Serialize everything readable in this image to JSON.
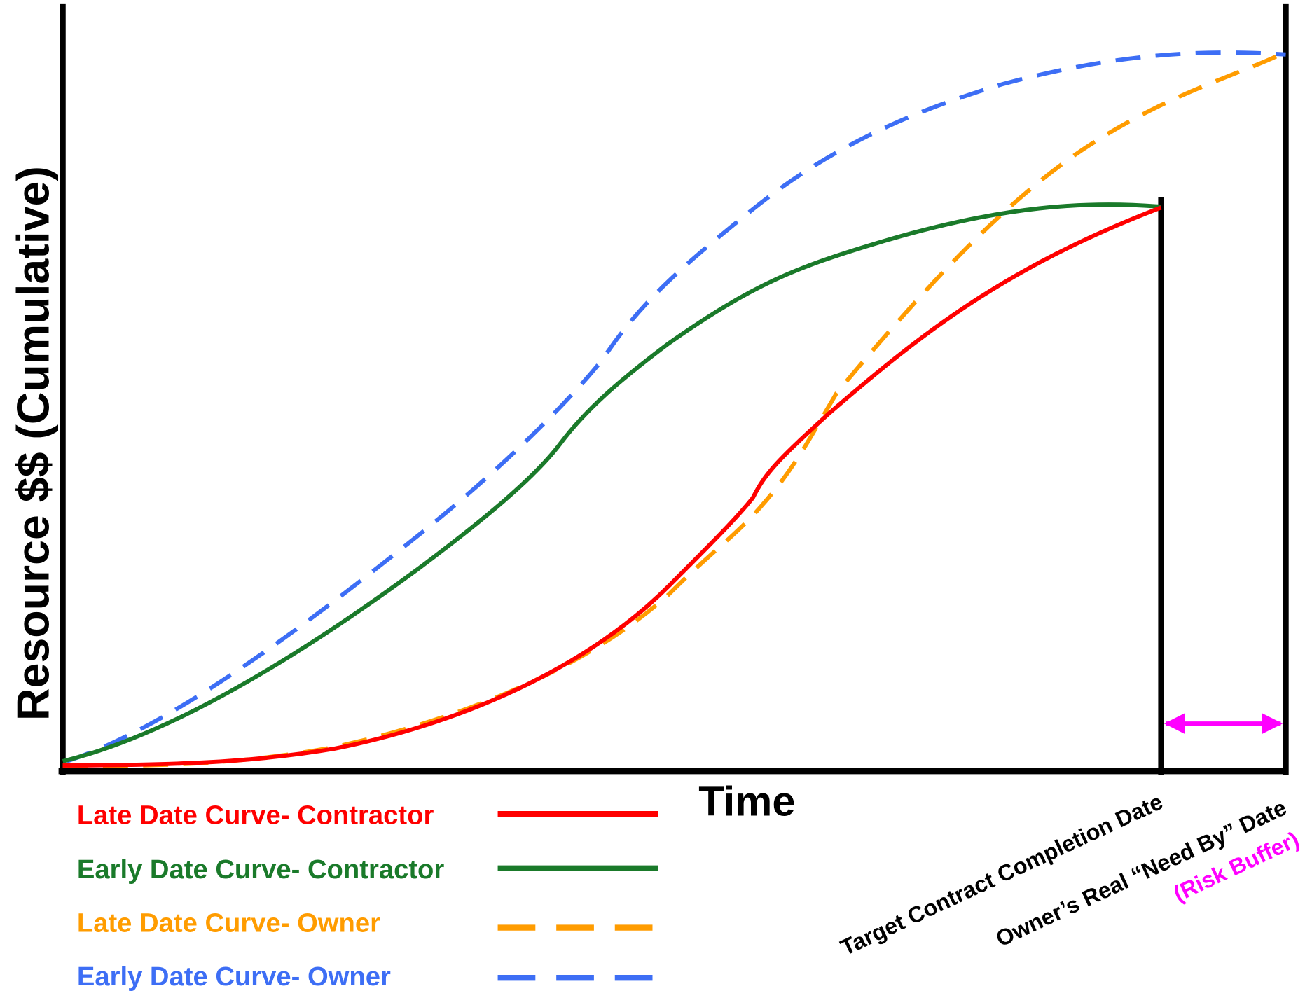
{
  "axes": {
    "y_label": "Resource $$ (Cumulative)",
    "x_label": "Time"
  },
  "legend": [
    {
      "label": "Late Date Curve- Contractor"
    },
    {
      "label": "Early Date Curve- Contractor"
    },
    {
      "label": "Late Date Curve- Owner"
    },
    {
      "label": "Early Date Curve- Owner"
    }
  ],
  "annotations": {
    "target_date": "Target Contract Completion Date",
    "need_by_date": "Owner’s Real “Need By” Date",
    "risk_buffer": "(Risk Buffer)"
  }
}
